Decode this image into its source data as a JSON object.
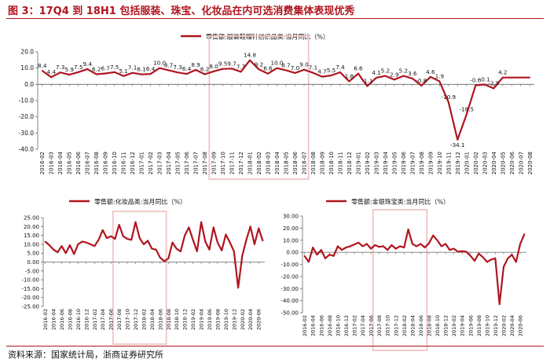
{
  "title": "图 3：17Q4 到 18H1 包括服装、珠宝、化妆品在内可选消费集体表现优秀",
  "source": "资料来源：国家统计局，浙商证券研究所",
  "colors": {
    "line": "#b0151f",
    "highlight": "#f0c4c4",
    "axis": "#666666",
    "text": "#111111",
    "title": "#b0151f"
  },
  "chart_data": [
    {
      "type": "line",
      "title": "",
      "legend": "零售额:服装鞋帽针纺织品类:当月同比（%）",
      "legend_position": "top",
      "xlabel": "",
      "ylabel": "",
      "ylim": [
        -40,
        20
      ],
      "yticks": [
        "20.0",
        "10.0",
        "0.0",
        "-10.0",
        "-20.0",
        "-30.0",
        "-40.0"
      ],
      "grid": false,
      "highlight": {
        "from": "2017-09",
        "to": "2018-07"
      },
      "x": [
        "2016-02",
        "2016-03",
        "2016-04",
        "2016-05",
        "2016-06",
        "2016-07",
        "2016-08",
        "2016-09",
        "2016-10",
        "2016-11",
        "2016-12",
        "2017-01",
        "2017-02",
        "2017-03",
        "2017-04",
        "2017-05",
        "2017-06",
        "2017-07",
        "2017-08",
        "2017-09",
        "2017-10",
        "2017-11",
        "2017-12",
        "2018-01",
        "2018-02",
        "2018-03",
        "2018-04",
        "2018-05",
        "2018-06",
        "2018-07",
        "2018-08",
        "2018-09",
        "2018-10",
        "2018-11",
        "2018-12",
        "2019-01",
        "2019-02",
        "2019-03",
        "2019-04",
        "2019-05",
        "2019-06",
        "2019-07",
        "2019-08",
        "2019-09",
        "2019-10",
        "2019-11",
        "2019-12",
        "2020-01",
        "2020-02",
        "2020-03",
        "2020-04",
        "2020-05",
        "2020-06",
        "2020-07",
        "2020-08"
      ],
      "xticks": [
        "2016-02",
        "2016-03",
        "2016-04",
        "2016-05",
        "2016-06",
        "2016-07",
        "2016-08",
        "2016-09",
        "2016-10",
        "2016-11",
        "2016-12",
        "2017-01",
        "2017-02",
        "2017-03",
        "2017-04",
        "2017-05",
        "2017-06",
        "2017-07",
        "2017-08",
        "2017-09",
        "2017-10",
        "2017-11",
        "2017-12",
        "2018-01",
        "2018-02",
        "2018-03",
        "2018-04",
        "2018-05",
        "2018-06",
        "2018-07",
        "2018-08",
        "2018-09",
        "2018-10",
        "2018-11",
        "2018-12",
        "2019-01",
        "2019-02",
        "2019-03",
        "2019-04",
        "2019-05",
        "2019-06",
        "2019-07",
        "2019-08",
        "2019-09",
        "2019-10",
        "2019-11",
        "2019-12",
        "2020-01",
        "2020-02",
        "2020-03",
        "2020-04",
        "2020-05",
        "2020-06",
        "2020-07",
        "2020-08"
      ],
      "series": [
        {
          "values": [
            8.4,
            4.4,
            7.3,
            5.9,
            7.5,
            9.4,
            6.2,
            6.7,
            7.5,
            5.1,
            7.1,
            6.1,
            6.4,
            10.0,
            8.7,
            7.3,
            6.4,
            8.9,
            6.2,
            8.0,
            9.5,
            9.7,
            7.7,
            14.8,
            9.2,
            6.6,
            10.0,
            8.7,
            7.0,
            9.0,
            7.1,
            4.7,
            5.5,
            7.4,
            1.8,
            6.6,
            -1.1,
            4.1,
            5.2,
            2.9,
            5.2,
            3.6,
            -0.8,
            4.6,
            1.9,
            -10.9,
            -34.1,
            -18.5,
            -0.6,
            -0.1,
            -2.5,
            4.2,
            4.2,
            4.2,
            4.2
          ]
        }
      ],
      "data_labels": [
        {
          "x": "2016-02",
          "text": "8.4"
        },
        {
          "x": "2016-03",
          "text": "4.4"
        },
        {
          "x": "2016-04",
          "text": "7.3"
        },
        {
          "x": "2016-05",
          "text": "5.9"
        },
        {
          "x": "2016-06",
          "text": "7.5"
        },
        {
          "x": "2016-07",
          "text": "9.4"
        },
        {
          "x": "2016-08",
          "text": "6.2"
        },
        {
          "x": "2016-09",
          "text": "6.7"
        },
        {
          "x": "2016-10",
          "text": "7.5"
        },
        {
          "x": "2016-11",
          "text": "5.1"
        },
        {
          "x": "2016-12",
          "text": "7.1"
        },
        {
          "x": "2017-01",
          "text": "6.1"
        },
        {
          "x": "2017-02",
          "text": "6.4"
        },
        {
          "x": "2017-03",
          "text": "10.0"
        },
        {
          "x": "2017-04",
          "text": "8.7"
        },
        {
          "x": "2017-05",
          "text": "7.3"
        },
        {
          "x": "2017-06",
          "text": "6.4"
        },
        {
          "x": "2017-07",
          "text": "8.9"
        },
        {
          "x": "2017-08",
          "text": "6.2"
        },
        {
          "x": "2017-09",
          "text": "8.0"
        },
        {
          "x": "2017-10",
          "text": "9.5"
        },
        {
          "x": "2017-11",
          "text": "9.7"
        },
        {
          "x": "2017-12",
          "text": "7.7"
        },
        {
          "x": "2018-01",
          "text": "14.8"
        },
        {
          "x": "2018-02",
          "text": "9.2"
        },
        {
          "x": "2018-03",
          "text": "6.6"
        },
        {
          "x": "2018-04",
          "text": "10.0"
        },
        {
          "x": "2018-05",
          "text": "8.7"
        },
        {
          "x": "2018-06",
          "text": "7.0"
        },
        {
          "x": "2018-07",
          "text": "9.0"
        },
        {
          "x": "2018-08",
          "text": "7.1"
        },
        {
          "x": "2018-09",
          "text": "4.7"
        },
        {
          "x": "2018-10",
          "text": "5.5"
        },
        {
          "x": "2018-11",
          "text": "7.4"
        },
        {
          "x": "2018-12",
          "text": "1.8"
        },
        {
          "x": "2019-01",
          "text": "6.6"
        },
        {
          "x": "2019-02",
          "text": "-1.1"
        },
        {
          "x": "2019-03",
          "text": "4.1"
        },
        {
          "x": "2019-04",
          "text": "5.2"
        },
        {
          "x": "2019-05",
          "text": "2.9"
        },
        {
          "x": "2019-06",
          "text": "5.2"
        },
        {
          "x": "2019-07",
          "text": "3.6"
        },
        {
          "x": "2019-08",
          "text": "-0.8"
        },
        {
          "x": "2019-09",
          "text": "4.6"
        },
        {
          "x": "2019-10",
          "text": "1.9"
        },
        {
          "x": "2019-11",
          "text": "-10.9"
        },
        {
          "x": "2019-12",
          "text": "-34.1"
        },
        {
          "x": "2020-01",
          "text": "-18.5"
        },
        {
          "x": "2020-02",
          "text": "-0.6"
        },
        {
          "x": "2020-03",
          "text": "-0.1"
        },
        {
          "x": "2020-04",
          "text": "-2.5"
        },
        {
          "x": "2020-05",
          "text": "4.2"
        }
      ]
    },
    {
      "type": "line",
      "title": "",
      "legend": "零售额:化妆品类:当月同比（%）",
      "legend_position": "top",
      "xlabel": "",
      "ylabel": "",
      "ylim": [
        -25,
        25
      ],
      "yticks": [
        "25.00",
        "20.00",
        "15.00",
        "10.00",
        "5.00",
        "0.00",
        "-5.00",
        "-10.00",
        "-15.00",
        "-20.00",
        "-25.00"
      ],
      "grid": false,
      "highlight": {
        "from": "2017-07",
        "to": "2018-07"
      },
      "x": [
        "2016-02",
        "2016-03",
        "2016-04",
        "2016-05",
        "2016-06",
        "2016-07",
        "2016-08",
        "2016-09",
        "2016-10",
        "2016-11",
        "2016-12",
        "2017-01",
        "2017-02",
        "2017-03",
        "2017-04",
        "2017-05",
        "2017-06",
        "2017-07",
        "2017-08",
        "2017-09",
        "2017-10",
        "2017-11",
        "2017-12",
        "2018-01",
        "2018-02",
        "2018-03",
        "2018-04",
        "2018-05",
        "2018-06",
        "2018-07",
        "2018-08",
        "2018-09",
        "2018-10",
        "2018-11",
        "2018-12",
        "2019-01",
        "2019-02",
        "2019-03",
        "2019-04",
        "2019-05",
        "2019-06",
        "2019-07",
        "2019-08",
        "2019-09",
        "2019-10",
        "2019-11",
        "2019-12",
        "2020-01",
        "2020-02",
        "2020-03",
        "2020-04",
        "2020-05",
        "2020-06",
        "2020-07"
      ],
      "xticks": [
        "2016-02",
        "2016-04",
        "2016-06",
        "2016-08",
        "2016-10",
        "2016-12",
        "2017-02",
        "2017-04",
        "2017-06",
        "2017-08",
        "2017-10",
        "2017-12",
        "2018-02",
        "2018-04",
        "2018-06",
        "2018-08",
        "2018-10",
        "2018-12",
        "2019-02",
        "2019-04",
        "2019-06",
        "2019-08",
        "2019-10",
        "2019-12",
        "2020-02",
        "2020-04",
        "2020-06"
      ],
      "series": [
        {
          "values": [
            11.5,
            9.5,
            7.0,
            5.5,
            9.0,
            5.0,
            9.5,
            4.5,
            10.0,
            11.5,
            11.0,
            10.0,
            9.0,
            12.5,
            18.0,
            13.5,
            14.5,
            13.0,
            21.0,
            14.5,
            13.0,
            12.5,
            22.5,
            13.5,
            10.0,
            12.0,
            7.5,
            7.0,
            2.5,
            0.5,
            2.0,
            11.0,
            7.5,
            6.0,
            15.0,
            19.5,
            12.5,
            6.0,
            22.5,
            11.5,
            7.0,
            19.5,
            11.0,
            6.5,
            15.5,
            11.0,
            6.0,
            -14.5,
            3.5,
            12.5,
            20.0,
            10.0,
            19.0,
            12.0
          ]
        }
      ]
    },
    {
      "type": "line",
      "title": "",
      "legend": "零售额:金银珠宝类:当月同比（%）",
      "legend_position": "top",
      "xlabel": "",
      "ylabel": "",
      "ylim": [
        -50,
        30
      ],
      "yticks": [
        "30.00",
        "20.00",
        "10.00",
        "0.00",
        "-10.00",
        "-20.00",
        "-30.00",
        "-40.00",
        "-50.00"
      ],
      "grid": false,
      "highlight": {
        "from": "2017-07",
        "to": "2018-07"
      },
      "x": [
        "2016-02",
        "2016-03",
        "2016-04",
        "2016-05",
        "2016-06",
        "2016-07",
        "2016-08",
        "2016-09",
        "2016-10",
        "2016-11",
        "2016-12",
        "2017-01",
        "2017-02",
        "2017-03",
        "2017-04",
        "2017-05",
        "2017-06",
        "2017-07",
        "2017-08",
        "2017-09",
        "2017-10",
        "2017-11",
        "2017-12",
        "2018-01",
        "2018-02",
        "2018-03",
        "2018-04",
        "2018-05",
        "2018-06",
        "2018-07",
        "2018-08",
        "2018-09",
        "2018-10",
        "2018-11",
        "2018-12",
        "2019-01",
        "2019-02",
        "2019-03",
        "2019-04",
        "2019-05",
        "2019-06",
        "2019-07",
        "2019-08",
        "2019-09",
        "2019-10",
        "2019-11",
        "2019-12",
        "2020-01",
        "2020-02",
        "2020-03",
        "2020-04",
        "2020-05",
        "2020-06",
        "2020-07"
      ],
      "xticks": [
        "2016-02",
        "2016-04",
        "2016-06",
        "2016-08",
        "2016-10",
        "2016-12",
        "2017-02",
        "2017-04",
        "2017-06",
        "2017-08",
        "2017-10",
        "2017-12",
        "2018-02",
        "2018-04",
        "2018-06",
        "2018-08",
        "2018-10",
        "2018-12",
        "2019-02",
        "2019-04",
        "2019-06",
        "2019-08",
        "2019-10",
        "2019-12",
        "2020-02",
        "2020-04",
        "2020-06"
      ],
      "series": [
        {
          "values": [
            -3.0,
            -8.0,
            4.0,
            -2.0,
            2.0,
            -5.0,
            -2.0,
            -3.0,
            5.0,
            2.0,
            4.0,
            5.0,
            6.5,
            8.0,
            5.0,
            7.0,
            3.0,
            6.0,
            4.5,
            5.0,
            2.0,
            6.0,
            3.0,
            5.0,
            4.0,
            19.0,
            7.0,
            5.0,
            7.0,
            4.0,
            7.5,
            14.0,
            10.0,
            5.0,
            7.0,
            2.0,
            3.0,
            0.5,
            1.0,
            0.5,
            -3.0,
            -7.0,
            -1.0,
            -4.0,
            -8.0,
            -6.0,
            -5.0,
            -43.0,
            -12.0,
            -5.0,
            -2.0,
            -8.0,
            7.0,
            15.0
          ]
        }
      ]
    }
  ]
}
